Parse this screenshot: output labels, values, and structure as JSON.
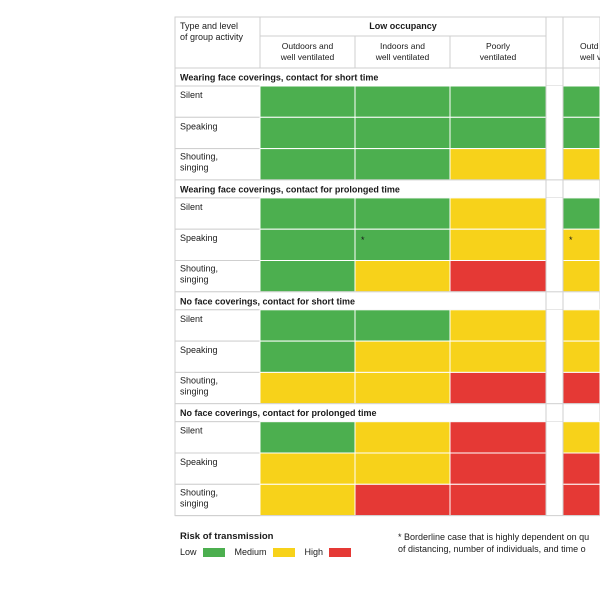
{
  "chart_data": {
    "type": "heatmap",
    "corner_header": [
      "Type and level",
      "of group activity"
    ],
    "group_headers": [
      {
        "label": "Low occupancy",
        "columns": [
          [
            "Outdoors and",
            "well ventilated"
          ],
          [
            "Indoors and",
            "well ventilated"
          ],
          [
            "Poorly",
            "ventilated"
          ]
        ]
      },
      {
        "label": "",
        "columns": [
          [
            "Outd",
            "well v"
          ]
        ]
      }
    ],
    "sections": [
      {
        "title": "Wearing face coverings, contact for short time",
        "rows": [
          {
            "label": [
              "Silent"
            ],
            "values": [
              "Low",
              "Low",
              "Low",
              "Low"
            ],
            "marks": [
              "",
              "",
              "",
              ""
            ]
          },
          {
            "label": [
              "Speaking"
            ],
            "values": [
              "Low",
              "Low",
              "Low",
              "Low"
            ],
            "marks": [
              "",
              "",
              "",
              ""
            ]
          },
          {
            "label": [
              "Shouting,",
              "singing"
            ],
            "values": [
              "Low",
              "Low",
              "Medium",
              "Medium"
            ],
            "marks": [
              "",
              "",
              "",
              ""
            ]
          }
        ]
      },
      {
        "title": "Wearing face coverings, contact for prolonged time",
        "rows": [
          {
            "label": [
              "Silent"
            ],
            "values": [
              "Low",
              "Low",
              "Medium",
              "Low"
            ],
            "marks": [
              "",
              "",
              "",
              ""
            ]
          },
          {
            "label": [
              "Speaking"
            ],
            "values": [
              "Low",
              "Low",
              "Medium",
              "Medium"
            ],
            "marks": [
              "",
              "*",
              "",
              "*"
            ]
          },
          {
            "label": [
              "Shouting,",
              "singing"
            ],
            "values": [
              "Low",
              "Medium",
              "High",
              "Medium"
            ],
            "marks": [
              "",
              "",
              "",
              ""
            ]
          }
        ]
      },
      {
        "title": "No face coverings, contact for short time",
        "rows": [
          {
            "label": [
              "Silent"
            ],
            "values": [
              "Low",
              "Low",
              "Medium",
              "Medium"
            ],
            "marks": [
              "",
              "",
              "",
              ""
            ]
          },
          {
            "label": [
              "Speaking"
            ],
            "values": [
              "Low",
              "Medium",
              "Medium",
              "Medium"
            ],
            "marks": [
              "",
              "",
              "",
              ""
            ]
          },
          {
            "label": [
              "Shouting,",
              "singing"
            ],
            "values": [
              "Medium",
              "Medium",
              "High",
              "High"
            ],
            "marks": [
              "",
              "",
              "",
              ""
            ]
          }
        ]
      },
      {
        "title": "No face coverings, contact for prolonged time",
        "rows": [
          {
            "label": [
              "Silent"
            ],
            "values": [
              "Low",
              "Medium",
              "High",
              "Medium"
            ],
            "marks": [
              "",
              "",
              "",
              ""
            ]
          },
          {
            "label": [
              "Speaking"
            ],
            "values": [
              "Medium",
              "Medium",
              "High",
              "High"
            ],
            "marks": [
              "",
              "",
              "",
              ""
            ]
          },
          {
            "label": [
              "Shouting,",
              "singing"
            ],
            "values": [
              "Medium",
              "High",
              "High",
              "High"
            ],
            "marks": [
              "",
              "",
              "",
              ""
            ]
          }
        ]
      }
    ],
    "colors": {
      "Low": "#4caf4f",
      "Medium": "#f7d21a",
      "High": "#e53935"
    }
  },
  "legend": {
    "title": "Risk of transmission",
    "items": [
      {
        "label": "Low",
        "color": "#4caf4f"
      },
      {
        "label": "Medium",
        "color": "#f7d21a"
      },
      {
        "label": "High",
        "color": "#e53935"
      }
    ]
  },
  "footnote": {
    "line1": "* Borderline case that is highly dependent on qu",
    "line2": "of distancing, number of individuals, and time o"
  }
}
